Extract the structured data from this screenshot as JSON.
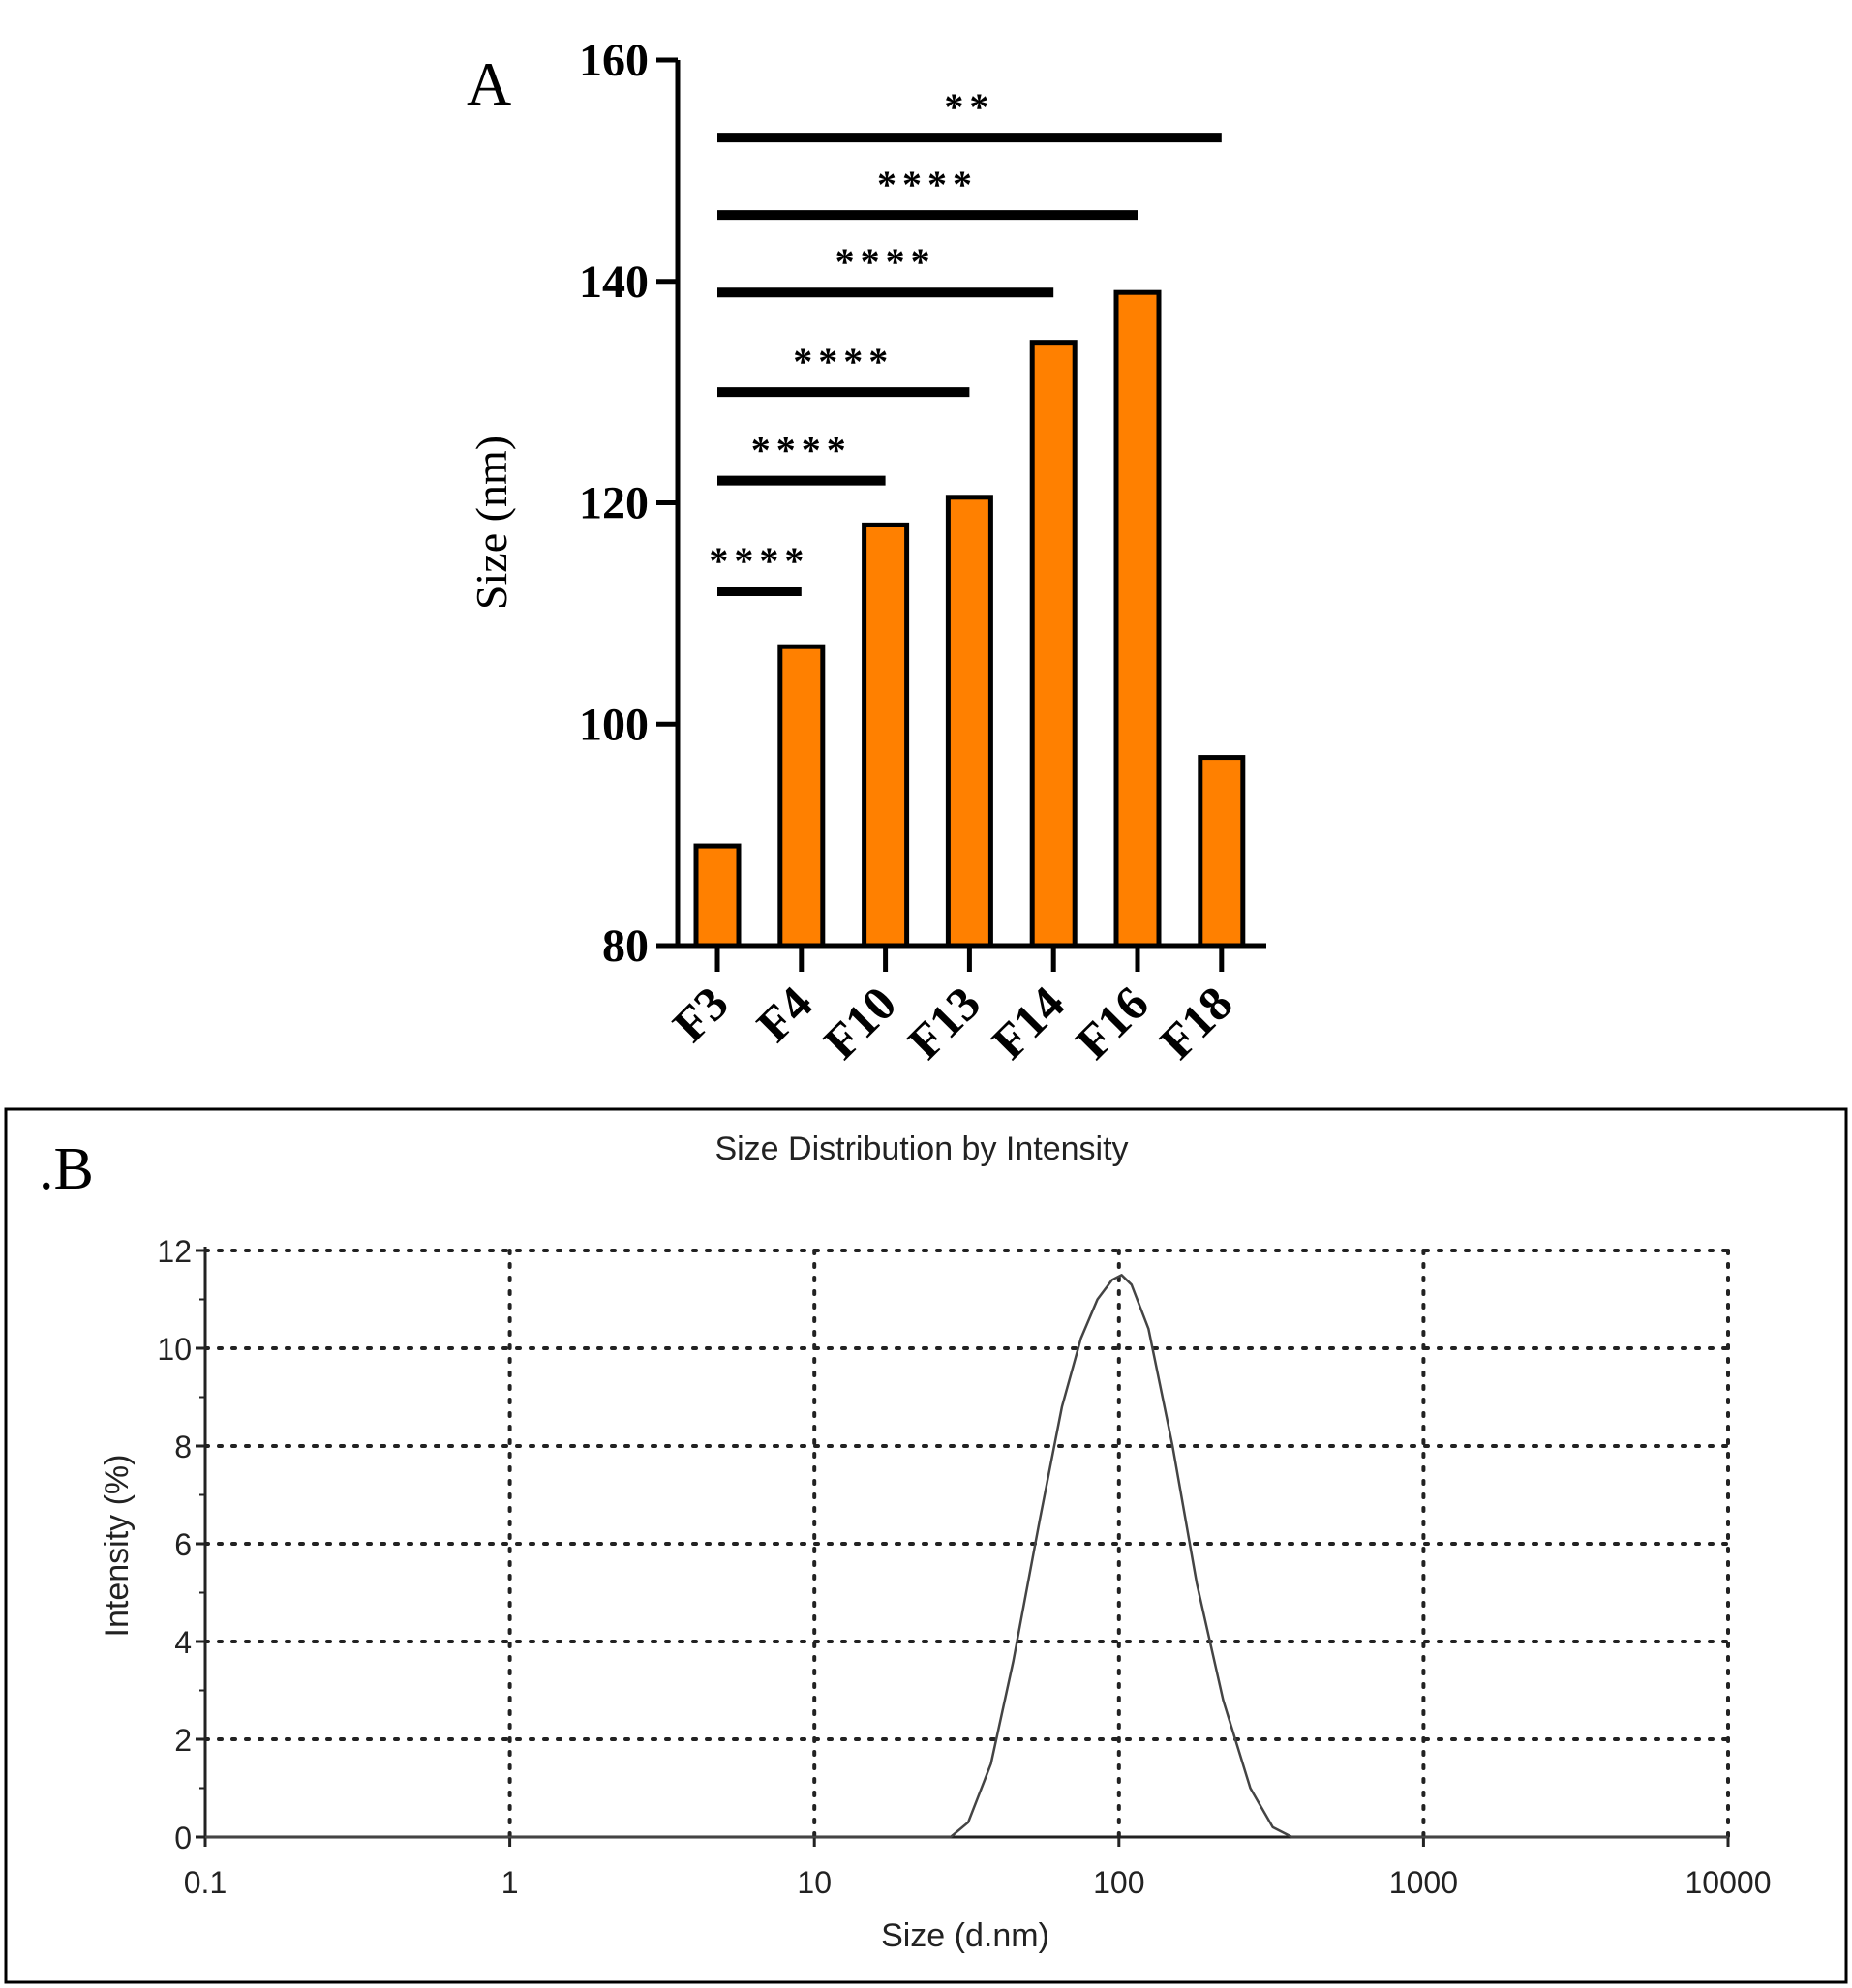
{
  "chart_data": [
    {
      "panel_label": "A",
      "type": "bar",
      "title": "",
      "xlabel": "",
      "ylabel": "Size (nm)",
      "ylim": [
        80,
        160
      ],
      "yticks": [
        "80",
        "100",
        "120",
        "140",
        "160"
      ],
      "categories": [
        "F3",
        "F4",
        "F10",
        "F13",
        "F14",
        "F16",
        "F18"
      ],
      "values": [
        89,
        107,
        118,
        120.5,
        134.5,
        139,
        97
      ],
      "bar_color": "#ff8000",
      "significance": [
        {
          "from": "F3",
          "to": "F4",
          "level": 112,
          "label": "****"
        },
        {
          "from": "F3",
          "to": "F10",
          "level": 122,
          "label": "****"
        },
        {
          "from": "F3",
          "to": "F13",
          "level": 130,
          "label": "****"
        },
        {
          "from": "F3",
          "to": "F14",
          "level": 139,
          "label": "****"
        },
        {
          "from": "F3",
          "to": "F16",
          "level": 146,
          "label": "****"
        },
        {
          "from": "F3",
          "to": "F18",
          "level": 153,
          "label": "**"
        }
      ]
    },
    {
      "panel_label": ".B",
      "type": "line",
      "title": "Size Distribution by Intensity",
      "xlabel": "Size (d.nm)",
      "ylabel": "Intensity (%)",
      "xscale": "log",
      "xlim": [
        0.1,
        10000
      ],
      "ylim": [
        0,
        12
      ],
      "xticks": [
        "0.1",
        "1",
        "10",
        "100",
        "1000",
        "10000"
      ],
      "yticks": [
        "0",
        "2",
        "4",
        "6",
        "8",
        "10",
        "12"
      ],
      "grid": true,
      "series": [
        {
          "x": [
            0.1,
            1,
            10,
            28,
            32,
            38,
            45,
            55,
            65,
            75,
            85,
            95,
            102,
            110,
            125,
            150,
            180,
            220,
            270,
            320,
            370,
            450,
            1000,
            10000
          ],
          "y": [
            0,
            0,
            0,
            0,
            0.3,
            1.5,
            3.6,
            6.5,
            8.8,
            10.2,
            11.0,
            11.4,
            11.5,
            11.3,
            10.4,
            8.0,
            5.2,
            2.8,
            1.0,
            0.2,
            0,
            0,
            0,
            0
          ]
        }
      ]
    }
  ]
}
